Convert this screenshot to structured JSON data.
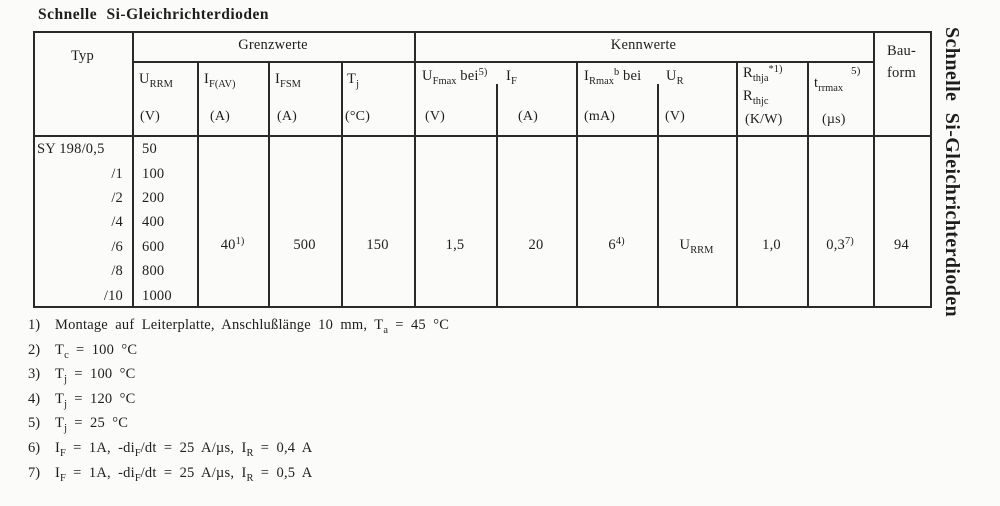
{
  "page": {
    "title": "Schnelle Si-Gleichrichterdioden",
    "side_title": "Schnelle Si-Gleichrichterdioden",
    "colors": {
      "paper": "#fbfbf9",
      "ink": "#1e1e1e",
      "line": "#2a2a2a"
    }
  },
  "table": {
    "typ_header": "Typ",
    "groups": {
      "limits": "Grenzwerte",
      "characteristics": "Kennwerte"
    },
    "bauform_header": {
      "line1": "Bau-",
      "line2": "form"
    },
    "columns": {
      "urrm": {
        "symbol": "U_{RRM}",
        "unit": "(V)"
      },
      "ifav": {
        "symbol": "I_{F(AV)}",
        "unit": "(A)"
      },
      "ifsm": {
        "symbol": "I_{FSM}",
        "unit": "(A)"
      },
      "tj": {
        "symbol": "T_{j}",
        "unit": "(°C)"
      },
      "ufmax_bei_if": {
        "symbol_left": "U_{Fmax} bei^{5)}",
        "symbol_right": "I_{F}",
        "unit_left": "(V)",
        "unit_right": "(A)"
      },
      "irmax_bei_ur": {
        "symbol_left": "I_{Rmax}^{b} bei",
        "symbol_right": "U_{R}",
        "unit_left": "(mA)",
        "unit_right": "(V)"
      },
      "rth": {
        "symbol_line1": "R_{thja}^{*1)}",
        "symbol_line2": "R_{thjc}",
        "unit": "(K/W)"
      },
      "trr": {
        "symbol": "t_{rrmax}",
        "marker": "5)",
        "unit": "(µs)"
      }
    },
    "rows": [
      {
        "typ": "SY 198/0,5",
        "urrm": "50"
      },
      {
        "typ": "/1",
        "urrm": "100"
      },
      {
        "typ": "/2",
        "urrm": "200"
      },
      {
        "typ": "/4",
        "urrm": "400"
      },
      {
        "typ": "/6",
        "urrm": "600"
      },
      {
        "typ": "/8",
        "urrm": "800"
      },
      {
        "typ": "/10",
        "urrm": "1000"
      }
    ],
    "merged_values": {
      "ifav": "40^{1)}",
      "ifsm": "500",
      "tj": "150",
      "ufmax": "1,5",
      "if": "20",
      "irmax": "6^{4)}",
      "ur": "U_{RRM}",
      "rth": "1,0",
      "trr": "0,3^{7)}",
      "bauform": "94"
    }
  },
  "footnotes": [
    {
      "marker": "1)",
      "text": "Montage auf Leiterplatte, Anschlußlänge 10 mm, T_{a} = 45 °C"
    },
    {
      "marker": "2)",
      "text": "T_{c} = 100 °C"
    },
    {
      "marker": "3)",
      "text": "T_{j} = 100 °C"
    },
    {
      "marker": "4)",
      "text": "T_{j} = 120 °C"
    },
    {
      "marker": "5)",
      "text": "T_{j} = 25 °C"
    },
    {
      "marker": "6)",
      "text": "I_{F} = 1A, -di_{F}/dt = 25 A/µs, I_{R} = 0,4 A"
    },
    {
      "marker": "7)",
      "text": "I_{F} = 1A, -di_{F}/dt = 25 A/µs, I_{R} = 0,5 A"
    }
  ]
}
